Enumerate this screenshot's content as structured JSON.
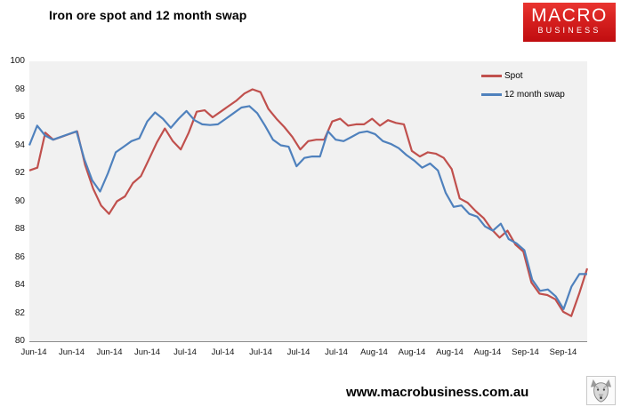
{
  "header": {
    "title": "Iron ore spot and 12 month swap"
  },
  "logo": {
    "line1": "MACRO",
    "line2": "BUSINESS",
    "bg_top": "#ea3530",
    "bg_bottom": "#c00d10",
    "text_color": "#ffffff"
  },
  "footer": {
    "url": "www.macrobusiness.com.au",
    "icon": "wolf-logo-icon"
  },
  "chart_data": {
    "type": "line",
    "title": "Iron ore spot and 12 month swap",
    "xlabel": "",
    "ylabel": "",
    "ylim": [
      80,
      100
    ],
    "y_ticks": [
      100,
      98,
      96,
      94,
      92,
      90,
      88,
      86,
      84,
      82,
      80
    ],
    "x_tick_labels": [
      "Jun-14",
      "Jun-14",
      "Jun-14",
      "Jun-14",
      "Jul-14",
      "Jul-14",
      "Jul-14",
      "Jul-14",
      "Jul-14",
      "Aug-14",
      "Aug-14",
      "Aug-14",
      "Aug-14",
      "Sep-14",
      "Sep-14"
    ],
    "grid": false,
    "plot_bg": "#f1f1f1",
    "legend_position": "top-right-inside",
    "series": [
      {
        "name": "Spot",
        "color": "#c0504d",
        "values": [
          92.2,
          92.4,
          94.9,
          94.4,
          94.6,
          94.8,
          95.0,
          92.6,
          90.9,
          89.7,
          89.1,
          90.0,
          90.35,
          91.3,
          91.8,
          93.0,
          94.2,
          95.2,
          94.3,
          93.7,
          94.9,
          96.4,
          96.5,
          96.0,
          96.4,
          96.8,
          97.2,
          97.7,
          98.0,
          97.8,
          96.6,
          95.9,
          95.3,
          94.6,
          93.7,
          94.3,
          94.4,
          94.4,
          95.7,
          95.9,
          95.4,
          95.5,
          95.5,
          95.9,
          95.4,
          95.8,
          95.6,
          95.5,
          93.6,
          93.2,
          93.5,
          93.4,
          93.1,
          92.3,
          90.2,
          89.9,
          89.3,
          88.8,
          88.0,
          87.4,
          87.9,
          86.9,
          86.4,
          84.2,
          83.4,
          83.3,
          83.0,
          82.1,
          81.8,
          83.4,
          85.2
        ]
      },
      {
        "name": "12 month swap",
        "color": "#4f81bd",
        "values": [
          94.0,
          95.4,
          94.7,
          94.4,
          94.6,
          94.8,
          95.0,
          93.0,
          91.5,
          90.7,
          92.0,
          93.5,
          93.9,
          94.3,
          94.5,
          95.7,
          96.35,
          95.9,
          95.25,
          95.9,
          96.45,
          95.8,
          95.5,
          95.45,
          95.5,
          95.9,
          96.3,
          96.7,
          96.8,
          96.3,
          95.4,
          94.4,
          94.0,
          93.9,
          92.5,
          93.1,
          93.2,
          93.2,
          95.0,
          94.4,
          94.3,
          94.6,
          94.9,
          95.0,
          94.8,
          94.3,
          94.1,
          93.8,
          93.3,
          92.9,
          92.4,
          92.7,
          92.2,
          90.6,
          89.6,
          89.7,
          89.1,
          88.9,
          88.2,
          87.9,
          88.4,
          87.3,
          87.0,
          86.5,
          84.4,
          83.6,
          83.7,
          83.2,
          82.3,
          83.9,
          84.8,
          84.8
        ]
      }
    ]
  }
}
